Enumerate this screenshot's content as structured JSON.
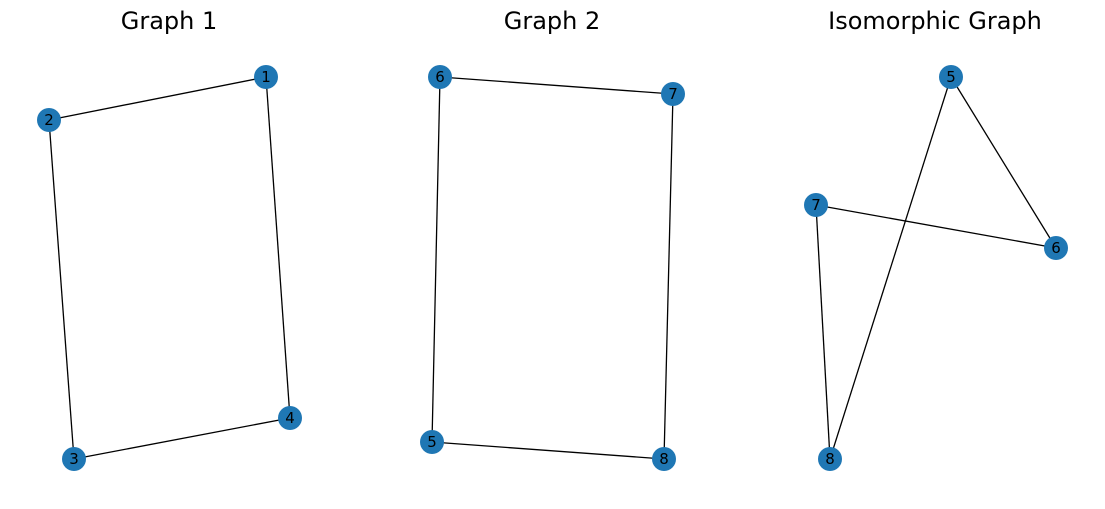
{
  "figure": {
    "panels": [
      {
        "title": "Graph 1",
        "nodes": [
          "1",
          "2",
          "3",
          "4"
        ],
        "edges": [
          [
            "1",
            "2"
          ],
          [
            "1",
            "4"
          ],
          [
            "2",
            "3"
          ],
          [
            "3",
            "4"
          ]
        ]
      },
      {
        "title": "Graph 2",
        "nodes": [
          "6",
          "7",
          "5",
          "8"
        ],
        "edges": [
          [
            "6",
            "7"
          ],
          [
            "6",
            "5"
          ],
          [
            "7",
            "8"
          ],
          [
            "5",
            "8"
          ]
        ]
      },
      {
        "title": "Isomorphic Graph",
        "nodes": [
          "5",
          "7",
          "6",
          "8"
        ],
        "edges": [
          [
            "5",
            "6"
          ],
          [
            "5",
            "8"
          ],
          [
            "7",
            "6"
          ],
          [
            "7",
            "8"
          ]
        ]
      }
    ],
    "colors": {
      "node_fill": "#1f77b4",
      "edge": "#000000",
      "label": "#000000",
      "background": "#ffffff"
    }
  }
}
